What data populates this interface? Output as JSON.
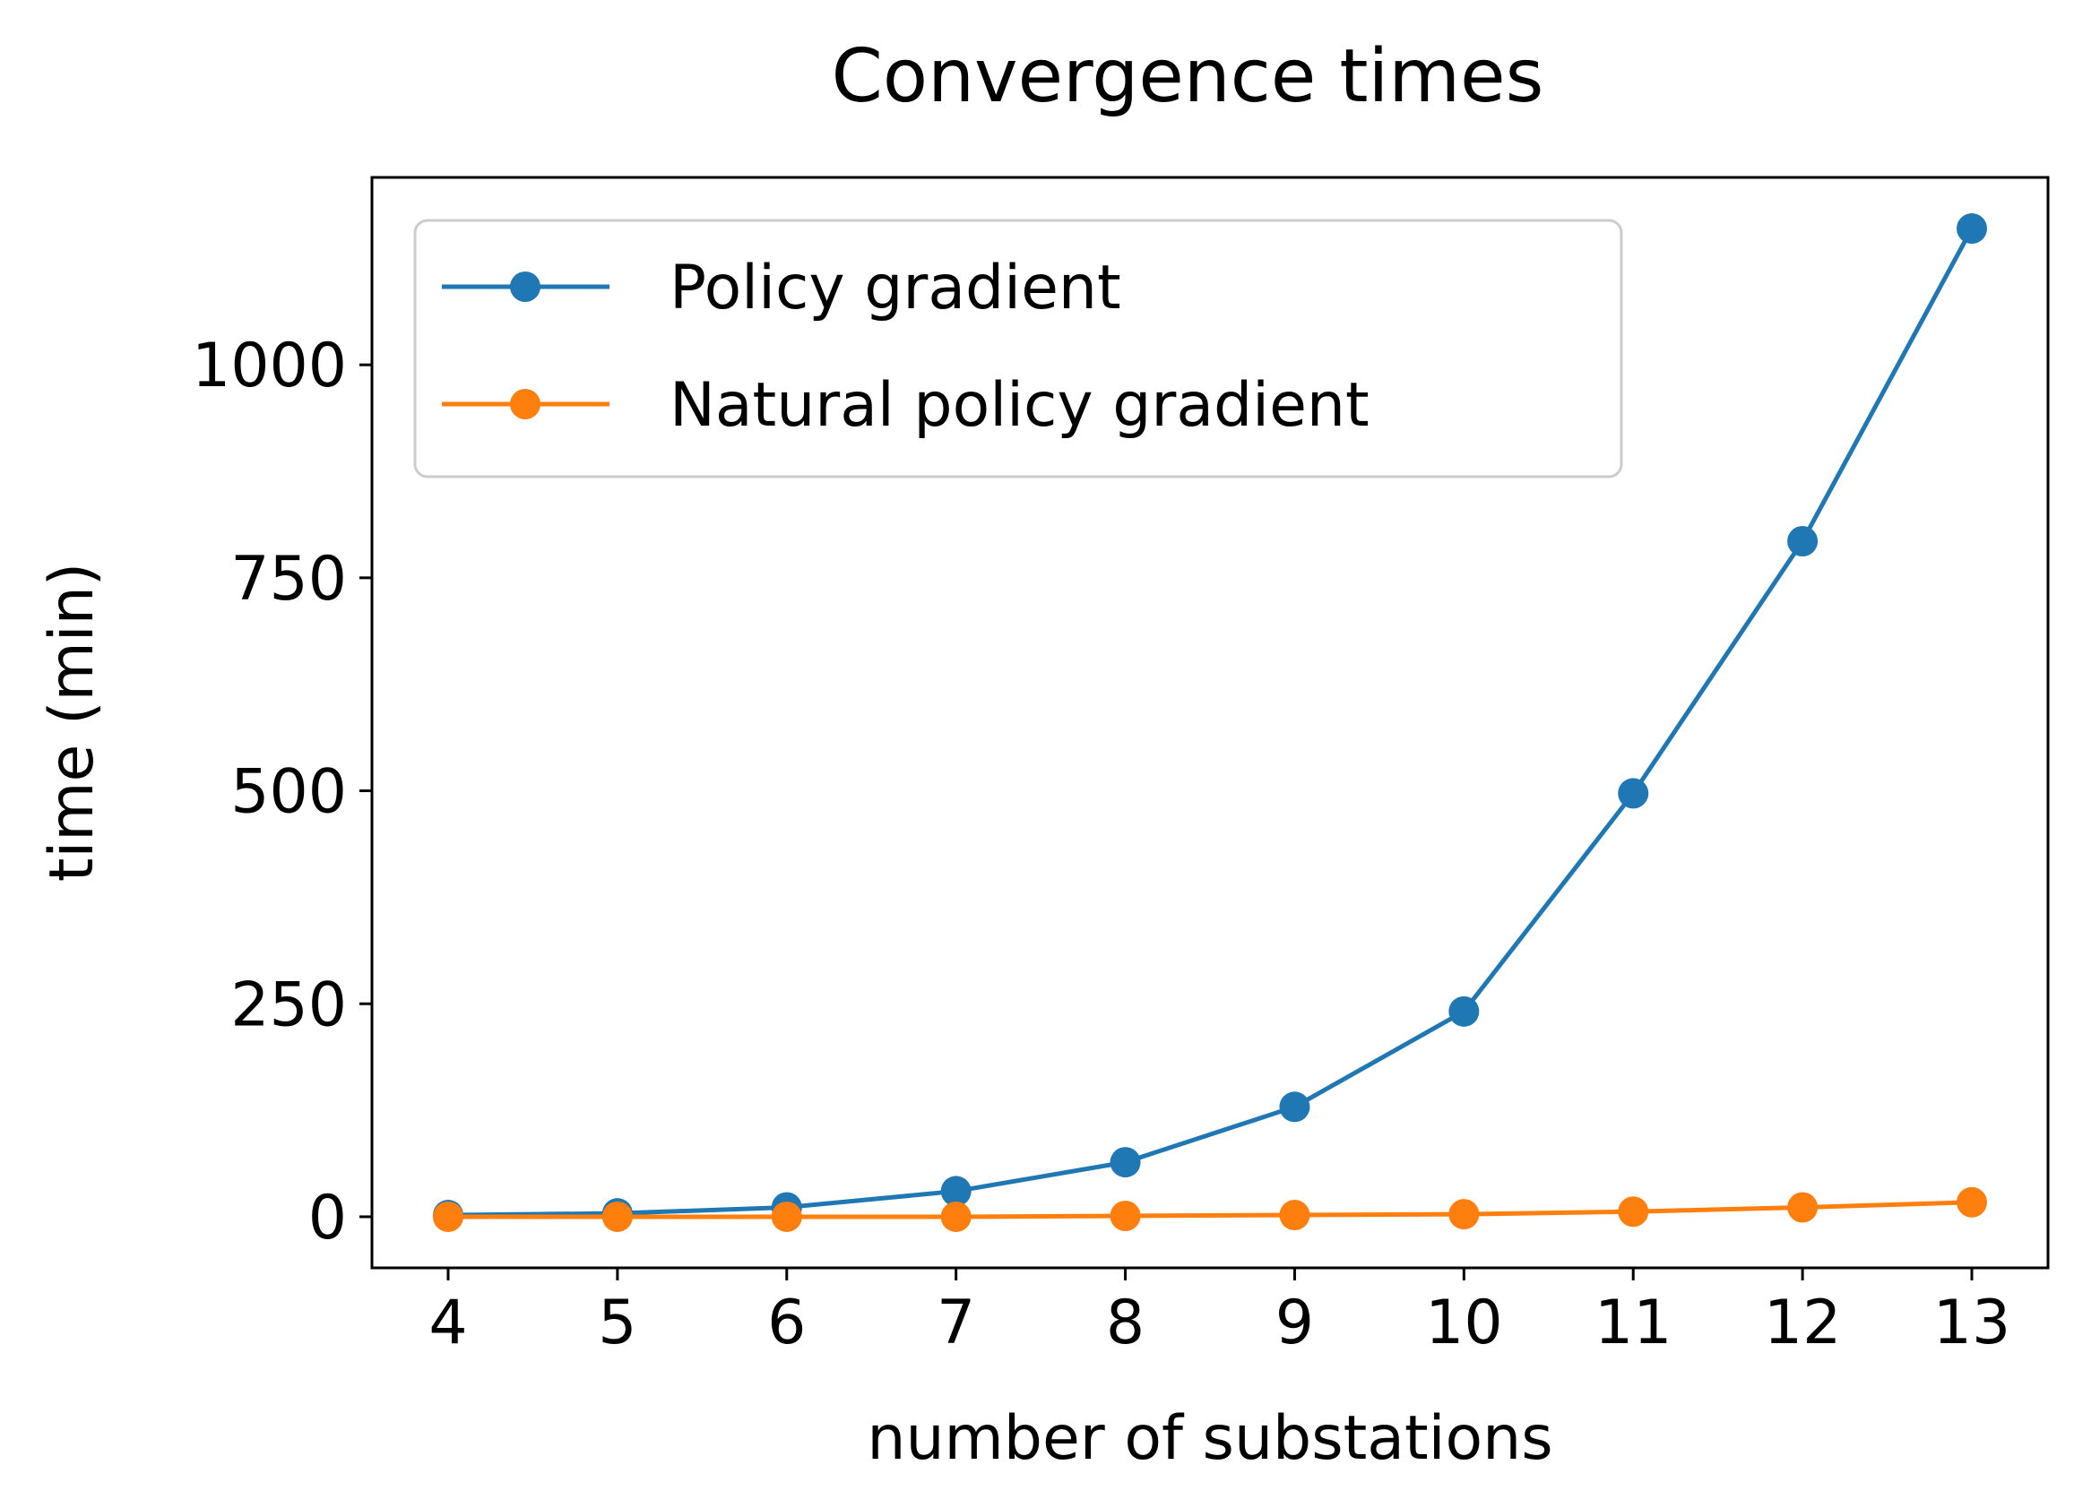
{
  "chart_data": {
    "type": "line",
    "title": "Convergence times",
    "xlabel": "number of substations",
    "ylabel": "time (min)",
    "x": [
      4,
      5,
      6,
      7,
      8,
      9,
      10,
      11,
      12,
      13
    ],
    "xlim": [
      3.55,
      13.45
    ],
    "ylim": [
      -60,
      1220
    ],
    "xticks": [
      4,
      5,
      6,
      7,
      8,
      9,
      10,
      11,
      12,
      13
    ],
    "yticks": [
      0,
      250,
      500,
      750,
      1000
    ],
    "grid": false,
    "legend_position": "top-left",
    "series": [
      {
        "name": "Policy gradient",
        "color": "#1f77b4",
        "values": [
          2,
          4,
          11,
          30,
          64,
          129,
          241,
          497,
          793,
          1160
        ]
      },
      {
        "name": "Natural policy gradient",
        "color": "#ff7f0e",
        "values": [
          0,
          0,
          0,
          0,
          1,
          2,
          3,
          6,
          11,
          17
        ]
      }
    ]
  }
}
